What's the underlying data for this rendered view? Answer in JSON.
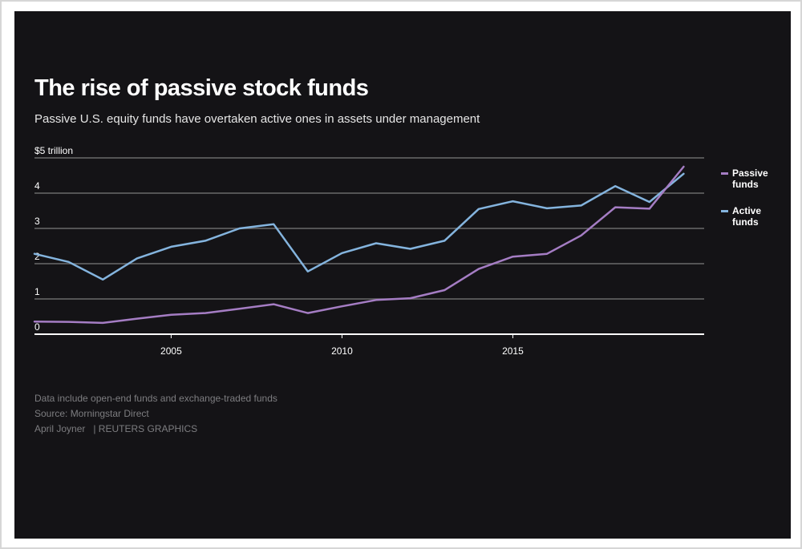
{
  "header": {
    "title": "The rise of passive stock funds",
    "subtitle": "Passive U.S. equity funds have overtaken active ones in assets under management"
  },
  "footer": {
    "note": "Data include open-end funds and exchange-traded funds",
    "source": "Source: Morningstar Direct",
    "author": "April Joyner",
    "agency": "| REUTERS GRAPHICS"
  },
  "colors": {
    "background": "#141316",
    "passive": "#a57dc4",
    "active": "#84b4de",
    "gridline": "#6a6a6a",
    "axis": "#ffffff",
    "tick_text": "#ffffff"
  },
  "chart_data": {
    "type": "line",
    "title": "The rise of passive stock funds",
    "subtitle": "Passive U.S. equity funds have overtaken active ones in assets under management",
    "xlabel": "",
    "ylabel": "$ trillion",
    "x": [
      2001,
      2002,
      2003,
      2004,
      2005,
      2006,
      2007,
      2008,
      2009,
      2010,
      2011,
      2012,
      2013,
      2014,
      2015,
      2016,
      2017,
      2018,
      2019,
      2020
    ],
    "xlim": [
      2001,
      2020.6
    ],
    "ylim": [
      0,
      5
    ],
    "y_ticks": [
      {
        "value": 0,
        "label": "0"
      },
      {
        "value": 1,
        "label": "1"
      },
      {
        "value": 2,
        "label": "2"
      },
      {
        "value": 3,
        "label": "3"
      },
      {
        "value": 4,
        "label": "4"
      },
      {
        "value": 5,
        "label": "$5 trillion"
      }
    ],
    "x_ticks": [
      {
        "value": 2005,
        "label": "2005"
      },
      {
        "value": 2010,
        "label": "2010"
      },
      {
        "value": 2015,
        "label": "2015"
      }
    ],
    "grid": true,
    "legend_position": "right",
    "series": [
      {
        "name": "Passive funds",
        "label_lines": [
          "Passive",
          "funds"
        ],
        "color": "#a57dc4",
        "values": [
          0.36,
          0.35,
          0.32,
          0.44,
          0.55,
          0.6,
          0.72,
          0.85,
          0.6,
          0.79,
          0.97,
          1.02,
          1.25,
          1.85,
          2.2,
          2.28,
          2.8,
          3.6,
          3.56,
          4.75
        ]
      },
      {
        "name": "Active funds",
        "label_lines": [
          "Active",
          "funds"
        ],
        "color": "#84b4de",
        "values": [
          2.28,
          2.05,
          1.55,
          2.15,
          2.48,
          2.65,
          3.0,
          3.12,
          1.78,
          2.3,
          2.58,
          2.42,
          2.65,
          3.55,
          3.77,
          3.57,
          3.65,
          4.2,
          3.75,
          4.55
        ]
      }
    ]
  }
}
